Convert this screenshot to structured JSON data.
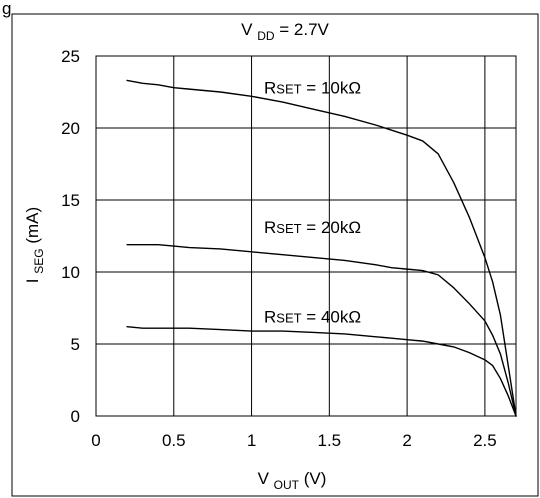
{
  "chart_data": {
    "type": "line",
    "header_partial": "g",
    "title": {
      "main": "V",
      "sub": "DD",
      "suffix": " = 2.7V"
    },
    "xlabel": {
      "main": "V",
      "sub": "OUT",
      "suffix": " (V)"
    },
    "ylabel": {
      "main": "I",
      "sub": "SEG",
      "suffix": " (mA)"
    },
    "xlim": [
      0,
      2.7
    ],
    "ylim": [
      0,
      25
    ],
    "xticks": [
      0,
      0.5,
      1,
      1.5,
      2,
      2.5
    ],
    "xtick_labels": [
      "0",
      "0.5",
      "1",
      "1.5",
      "2",
      "2.5"
    ],
    "yticks": [
      0,
      5,
      10,
      15,
      20,
      25
    ],
    "ytick_labels": [
      "0",
      "5",
      "10",
      "15",
      "20",
      "25"
    ],
    "x_grid": [
      0.5,
      1,
      1.5,
      2,
      2.5
    ],
    "y_grid": [
      5,
      10,
      15,
      20
    ],
    "grid": true,
    "series": [
      {
        "name": "RSET = 10kΩ",
        "label": {
          "main": "R",
          "sub": "SET",
          "suffix": " = 10kΩ"
        },
        "label_anchor": {
          "x": 1.08,
          "y": 22.4
        },
        "x": [
          0.2,
          0.3,
          0.4,
          0.5,
          0.6,
          0.8,
          1.0,
          1.2,
          1.4,
          1.6,
          1.8,
          2.0,
          2.1,
          2.2,
          2.3,
          2.4,
          2.5,
          2.55,
          2.6,
          2.65,
          2.7
        ],
        "y": [
          23.3,
          23.1,
          23.0,
          22.8,
          22.7,
          22.5,
          22.2,
          21.8,
          21.3,
          20.8,
          20.2,
          19.5,
          19.1,
          18.2,
          16.2,
          13.8,
          11.0,
          9.3,
          7.0,
          3.5,
          0
        ]
      },
      {
        "name": "RSET = 20kΩ",
        "label": {
          "main": "R",
          "sub": "SET",
          "suffix": " = 20kΩ"
        },
        "label_anchor": {
          "x": 1.08,
          "y": 12.7
        },
        "x": [
          0.2,
          0.3,
          0.4,
          0.5,
          0.6,
          0.8,
          1.0,
          1.2,
          1.4,
          1.6,
          1.8,
          1.9,
          2.0,
          2.1,
          2.2,
          2.3,
          2.4,
          2.5,
          2.55,
          2.6,
          2.65,
          2.7
        ],
        "y": [
          11.9,
          11.9,
          11.9,
          11.8,
          11.7,
          11.6,
          11.4,
          11.2,
          11.0,
          10.8,
          10.5,
          10.3,
          10.2,
          10.1,
          9.8,
          8.9,
          7.8,
          6.6,
          5.6,
          4.3,
          2.3,
          0
        ]
      },
      {
        "name": "RSET = 40kΩ",
        "label": {
          "main": "R",
          "sub": "SET",
          "suffix": " = 40kΩ"
        },
        "label_anchor": {
          "x": 1.08,
          "y": 6.5
        },
        "x": [
          0.2,
          0.3,
          0.4,
          0.5,
          0.6,
          0.8,
          1.0,
          1.2,
          1.4,
          1.6,
          1.8,
          1.9,
          2.0,
          2.1,
          2.2,
          2.3,
          2.4,
          2.5,
          2.55,
          2.6,
          2.65,
          2.7
        ],
        "y": [
          6.2,
          6.1,
          6.1,
          6.1,
          6.1,
          6.0,
          5.9,
          5.9,
          5.8,
          5.7,
          5.5,
          5.4,
          5.3,
          5.2,
          5.0,
          4.8,
          4.4,
          3.9,
          3.5,
          2.6,
          1.4,
          0
        ]
      }
    ]
  }
}
